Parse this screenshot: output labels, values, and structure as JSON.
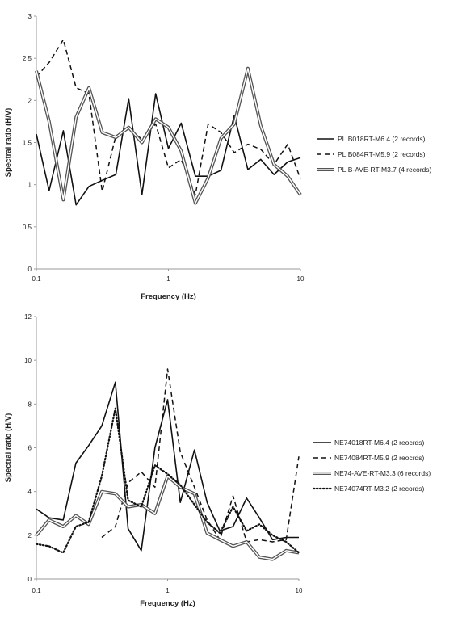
{
  "chart_data": [
    {
      "type": "line",
      "xscale": "log",
      "xlabel": "Frequency (Hz)",
      "ylabel": "Spectral ratio (H/V)",
      "xlim": [
        0.1,
        10
      ],
      "ylim": [
        0,
        3
      ],
      "xticks": [
        "0.1",
        "1",
        "10"
      ],
      "yticks": [
        "0",
        "0.5",
        "1",
        "1.5",
        "2",
        "2.5",
        "3"
      ],
      "legend_position": "right",
      "series": [
        {
          "name": "PLIB018RT-M6.4 (2 records)",
          "style": "solid",
          "x": [
            0.1,
            0.125,
            0.16,
            0.2,
            0.25,
            0.315,
            0.4,
            0.5,
            0.63,
            0.8,
            1.0,
            1.25,
            1.6,
            2.0,
            2.5,
            3.15,
            4.0,
            5.0,
            6.3,
            8.0,
            10.0
          ],
          "y": [
            1.6,
            0.93,
            1.64,
            0.76,
            0.98,
            1.05,
            1.12,
            2.02,
            0.88,
            2.08,
            1.43,
            1.73,
            1.1,
            1.1,
            1.17,
            1.82,
            1.18,
            1.3,
            1.12,
            1.27,
            1.32
          ]
        },
        {
          "name": "PLIB084RT-M5.9 (2 records)",
          "style": "dashed",
          "x": [
            0.1,
            0.125,
            0.16,
            0.2,
            0.25,
            0.315,
            0.4,
            0.5,
            0.63,
            0.8,
            1.0,
            1.25,
            1.6,
            2.0,
            2.5,
            3.15,
            4.0,
            5.0,
            6.3,
            8.0,
            10.0
          ],
          "y": [
            2.28,
            2.45,
            2.72,
            2.15,
            2.08,
            0.92,
            1.58,
            1.66,
            1.54,
            1.72,
            1.2,
            1.3,
            0.88,
            1.72,
            1.62,
            1.38,
            1.48,
            1.42,
            1.24,
            1.48,
            1.07
          ]
        },
        {
          "name": "PLIB-AVE-RT-M3.7 (4 records)",
          "style": "double",
          "x": [
            0.1,
            0.125,
            0.16,
            0.2,
            0.25,
            0.315,
            0.4,
            0.5,
            0.63,
            0.8,
            1.0,
            1.25,
            1.6,
            2.0,
            2.5,
            3.15,
            4.0,
            5.0,
            6.3,
            8.0,
            10.0
          ],
          "y": [
            2.35,
            1.75,
            0.82,
            1.8,
            2.15,
            1.62,
            1.56,
            1.68,
            1.5,
            1.78,
            1.68,
            1.4,
            0.78,
            1.08,
            1.55,
            1.72,
            2.38,
            1.7,
            1.24,
            1.1,
            0.88
          ]
        }
      ]
    },
    {
      "type": "line",
      "xscale": "log",
      "xlabel": "Frequency (Hz)",
      "ylabel": "Spectral ratio (H/V)",
      "xlim": [
        0.1,
        10
      ],
      "ylim": [
        0,
        12
      ],
      "xticks": [
        "0.1",
        "1",
        "10"
      ],
      "yticks": [
        "0",
        "2",
        "4",
        "6",
        "8",
        "10",
        "12"
      ],
      "legend_position": "right",
      "series": [
        {
          "name": "NE74018RT-M6.4 (2 reocrds)",
          "style": "solid",
          "x": [
            0.1,
            0.125,
            0.16,
            0.2,
            0.25,
            0.315,
            0.4,
            0.5,
            0.63,
            0.8,
            1.0,
            1.25,
            1.6,
            2.0,
            2.5,
            3.15,
            4.0,
            5.0,
            6.3,
            8.0,
            10.0
          ],
          "y": [
            3.2,
            2.8,
            2.7,
            5.3,
            6.1,
            7.0,
            9.0,
            2.3,
            1.3,
            6.0,
            8.2,
            3.5,
            5.9,
            3.5,
            2.2,
            2.4,
            3.7,
            2.8,
            1.8,
            1.9,
            1.9
          ]
        },
        {
          "name": "NE74084RT-M5.9 (2 reocrds)",
          "style": "dashed",
          "x": [
            0.315,
            0.4,
            0.5,
            0.63,
            0.8,
            1.0,
            1.25,
            1.6,
            2.0,
            2.5,
            3.15,
            4.0,
            5.0,
            6.3,
            8.0,
            10.0
          ],
          "y": [
            1.9,
            2.4,
            4.4,
            4.9,
            4.2,
            9.6,
            5.8,
            4.2,
            2.7,
            1.8,
            3.8,
            1.7,
            1.8,
            1.7,
            1.8,
            5.6
          ]
        },
        {
          "name": "NE74-AVE-RT-M3.3 (6 records)",
          "style": "double",
          "x": [
            0.1,
            0.125,
            0.16,
            0.2,
            0.25,
            0.315,
            0.4,
            0.5,
            0.63,
            0.8,
            1.0,
            1.25,
            1.6,
            2.0,
            2.5,
            3.15,
            4.0,
            5.0,
            6.3,
            8.0,
            10.0
          ],
          "y": [
            2.0,
            2.7,
            2.4,
            2.9,
            2.5,
            4.0,
            3.9,
            3.3,
            3.4,
            3.0,
            4.7,
            4.2,
            3.9,
            2.1,
            1.8,
            1.5,
            1.7,
            1.0,
            0.9,
            1.3,
            1.2
          ]
        },
        {
          "name": "NE74074RT-M3.2 (2 records)",
          "style": "dotted",
          "x": [
            0.1,
            0.125,
            0.16,
            0.2,
            0.25,
            0.315,
            0.4,
            0.5,
            0.63,
            0.8,
            1.0,
            1.25,
            1.6,
            2.0,
            2.5,
            3.15,
            4.0,
            5.0,
            6.3,
            8.0,
            10.0
          ],
          "y": [
            1.6,
            1.5,
            1.2,
            2.4,
            2.6,
            4.7,
            7.8,
            3.6,
            3.3,
            5.2,
            4.8,
            4.3,
            3.4,
            2.6,
            2.1,
            3.3,
            2.2,
            2.5,
            2.0,
            1.7,
            1.2
          ]
        }
      ]
    }
  ]
}
